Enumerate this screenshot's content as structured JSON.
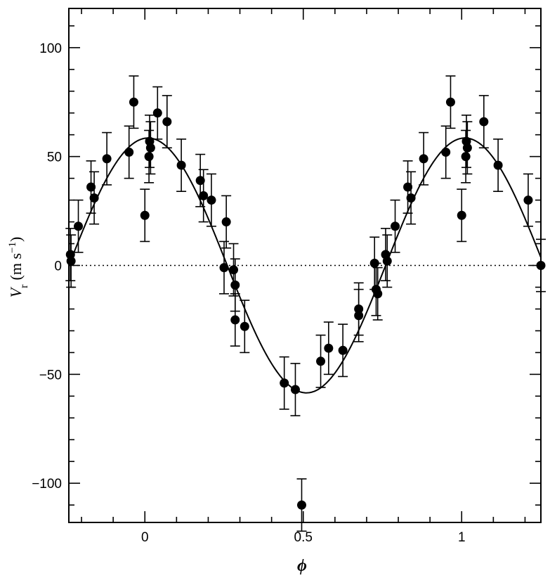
{
  "chart_data": {
    "type": "scatter",
    "title": "",
    "xlabel": "ϕ",
    "ylabel": "V",
    "ylabel_sub": "r",
    "ylabel_units": "(m s",
    "ylabel_units_exp": "−1",
    "ylabel_units_close": ")",
    "xlim": [
      -0.24,
      1.25
    ],
    "ylim": [
      -118,
      118
    ],
    "x_ticks": [
      {
        "value": 0,
        "label": "0"
      },
      {
        "value": 0.5,
        "label": "0.5"
      },
      {
        "value": 1,
        "label": "1"
      }
    ],
    "y_ticks": [
      {
        "value": 100,
        "label": "100"
      },
      {
        "value": 50,
        "label": "50"
      },
      {
        "value": 0,
        "label": "0"
      },
      {
        "value": -50,
        "label": "−50"
      },
      {
        "value": -100,
        "label": "−100"
      }
    ],
    "zero_line": true,
    "grid": false,
    "legend": "none",
    "model_curve": {
      "type": "sinusoid",
      "amplitude": 58.5,
      "phase_of_maximum": 0.01,
      "period": 1.0
    },
    "error_bar": 12,
    "points": [
      {
        "x": -0.235,
        "y": 5
      },
      {
        "x": -0.233,
        "y": 2
      },
      {
        "x": -0.21,
        "y": 18
      },
      {
        "x": -0.17,
        "y": 36
      },
      {
        "x": -0.16,
        "y": 31
      },
      {
        "x": -0.12,
        "y": 49
      },
      {
        "x": -0.05,
        "y": 52
      },
      {
        "x": -0.035,
        "y": 75
      },
      {
        "x": 0.0,
        "y": 23
      },
      {
        "x": 0.013,
        "y": 50
      },
      {
        "x": 0.018,
        "y": 54
      },
      {
        "x": 0.015,
        "y": 57
      },
      {
        "x": 0.04,
        "y": 70
      },
      {
        "x": 0.07,
        "y": 66
      },
      {
        "x": 0.115,
        "y": 46
      },
      {
        "x": 0.175,
        "y": 39
      },
      {
        "x": 0.185,
        "y": 32
      },
      {
        "x": 0.21,
        "y": 30
      },
      {
        "x": 0.25,
        "y": -1
      },
      {
        "x": 0.257,
        "y": 20
      },
      {
        "x": 0.28,
        "y": -2
      },
      {
        "x": 0.285,
        "y": -9
      },
      {
        "x": 0.285,
        "y": -25
      },
      {
        "x": 0.315,
        "y": -28
      },
      {
        "x": 0.44,
        "y": -54
      },
      {
        "x": 0.475,
        "y": -57
      },
      {
        "x": 0.495,
        "y": -110
      },
      {
        "x": 0.555,
        "y": -44
      },
      {
        "x": 0.58,
        "y": -38
      },
      {
        "x": 0.625,
        "y": -39
      },
      {
        "x": 0.675,
        "y": -20
      },
      {
        "x": 0.675,
        "y": -23
      },
      {
        "x": 0.725,
        "y": 1
      },
      {
        "x": 0.73,
        "y": -11
      },
      {
        "x": 0.735,
        "y": -13
      },
      {
        "x": 0.76,
        "y": 5
      },
      {
        "x": 0.765,
        "y": 2
      },
      {
        "x": 0.79,
        "y": 18
      },
      {
        "x": 0.83,
        "y": 36
      },
      {
        "x": 0.84,
        "y": 31
      },
      {
        "x": 0.88,
        "y": 49
      },
      {
        "x": 0.95,
        "y": 52
      },
      {
        "x": 0.965,
        "y": 75
      },
      {
        "x": 1.0,
        "y": 23
      },
      {
        "x": 1.013,
        "y": 50
      },
      {
        "x": 1.018,
        "y": 54
      },
      {
        "x": 1.015,
        "y": 57
      },
      {
        "x": 1.07,
        "y": 66
      },
      {
        "x": 1.115,
        "y": 46
      },
      {
        "x": 1.21,
        "y": 30
      },
      {
        "x": 1.25,
        "y": 0
      }
    ]
  }
}
